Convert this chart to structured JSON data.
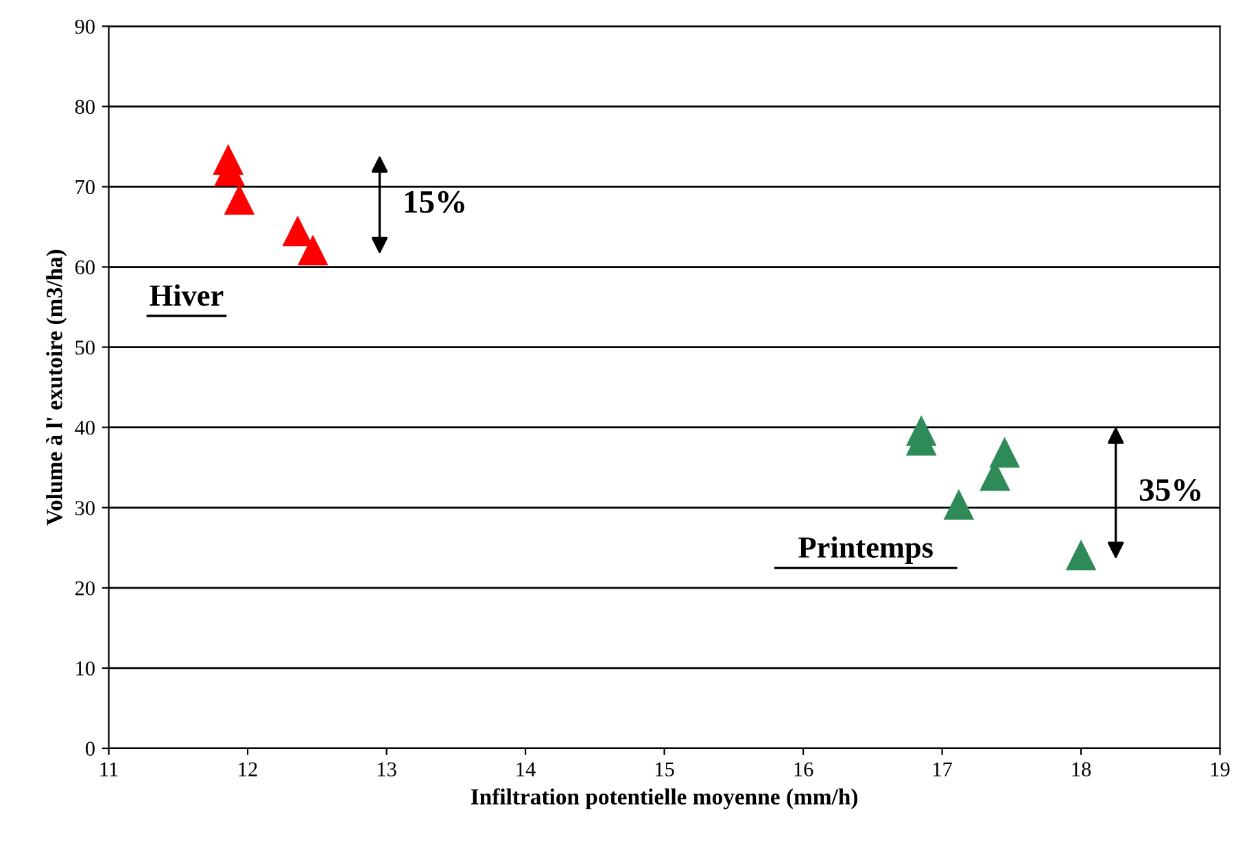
{
  "chart_data": {
    "type": "scatter",
    "xlabel": "Infiltration potentielle moyenne (mm/h)",
    "ylabel": "Volume à l' exutoire (m3/ha)",
    "series": [
      {
        "name": "Hiver",
        "color": "#ff0000",
        "x": [
          11.86,
          11.87,
          11.94,
          12.36,
          12.47
        ],
        "values": [
          73.4,
          72.0,
          68.4,
          64.5,
          62.1
        ]
      },
      {
        "name": "Printemps",
        "color": "#2e8b57",
        "x": [
          16.85,
          16.85,
          17.12,
          17.38,
          17.45,
          18.0
        ],
        "values": [
          39.6,
          38.4,
          30.4,
          34.0,
          36.9,
          24.1
        ]
      }
    ],
    "annotations": [
      "15%",
      "35%"
    ],
    "xlim": [
      11,
      19
    ],
    "xticks": [
      11,
      12,
      13,
      14,
      15,
      16,
      17,
      18,
      19
    ],
    "ylim": [
      0,
      90
    ],
    "yticks": [
      0,
      10,
      20,
      30,
      40,
      50,
      60,
      70,
      80,
      90
    ],
    "grid": "y",
    "marker": "triangle"
  }
}
